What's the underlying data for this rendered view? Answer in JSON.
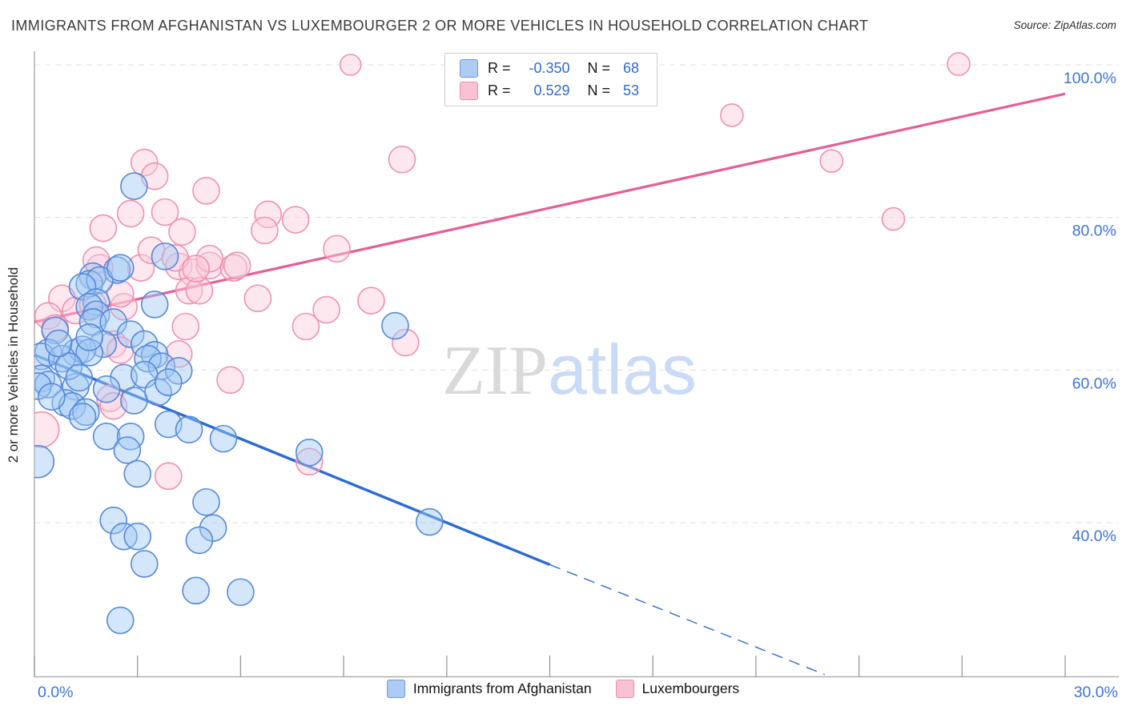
{
  "title": "IMMIGRANTS FROM AFGHANISTAN VS LUXEMBOURGER 2 OR MORE VEHICLES IN HOUSEHOLD CORRELATION CHART",
  "source": "Source: ZipAtlas.com",
  "ylabel": "2 or more Vehicles in Household",
  "watermark": {
    "part1": "ZIP",
    "part2": "atlas"
  },
  "legend_box": {
    "rows": [
      {
        "series": "Immigrants from Afghanistan",
        "r_label": "R =",
        "r_value": "-0.350",
        "n_label": "N =",
        "n_value": "68"
      },
      {
        "series": "Luxembourgers",
        "r_label": "R =",
        "r_value": "0.529",
        "n_label": "N =",
        "n_value": "53"
      }
    ]
  },
  "bottom_legend": [
    {
      "label": "Immigrants from Afghanistan",
      "color_class": "swatch-blue"
    },
    {
      "label": "Luxembourgers",
      "color_class": "swatch-pink"
    }
  ],
  "colors": {
    "axis_label_blue": "#3d74d9",
    "blue_stroke": "#5588d8",
    "blue_fill": "rgba(160,200,245,0.45)",
    "pink_stroke": "#f090b0",
    "pink_fill": "rgba(250,205,220,0.45)",
    "blue_trend": "#2c6bd0",
    "pink_trend": "#e55f96",
    "gridline": "#dcdcdc",
    "axis": "#b0b0b0",
    "tick": "#9a9a9a",
    "watermark_zip": "#d9d9d9",
    "watermark_atlas": "#c9dbf6"
  },
  "chart_data": {
    "type": "scatter",
    "title": "IMMIGRANTS FROM AFGHANISTAN VS LUXEMBOURGER 2 OR MORE VEHICLES IN HOUSEHOLD CORRELATION CHART",
    "xlabel": "Immigrants from Afghanistan (%)",
    "ylabel": "2 or more Vehicles in Household",
    "x_axis": {
      "min": 0,
      "max": 30,
      "tick_step": 3,
      "edge_labels": [
        "0.0%",
        "30.0%"
      ]
    },
    "y_axis": {
      "min": 20,
      "max": 101.7,
      "gridlines": [
        100,
        80,
        60,
        40
      ],
      "labels": [
        "100.0%",
        "80.0%",
        "60.0%",
        "40.0%"
      ],
      "grid": "dashed"
    },
    "legend_position": "top-center",
    "series": [
      {
        "name": "Immigrants from Afghanistan",
        "R": -0.35,
        "N": 68,
        "points": [
          [
            2.4,
            73.1
          ],
          [
            1.7,
            72.3
          ],
          [
            1.6,
            71.3
          ],
          [
            1.9,
            71.8
          ],
          [
            1.4,
            70.9
          ],
          [
            1.8,
            68.9
          ],
          [
            1.6,
            68.3
          ],
          [
            3.5,
            68.6
          ],
          [
            1.8,
            67.3
          ],
          [
            1.7,
            66.3
          ],
          [
            2.3,
            66.3
          ],
          [
            0.6,
            65.2
          ],
          [
            2.8,
            64.7
          ],
          [
            3.2,
            63.4
          ],
          [
            2.0,
            63.4
          ],
          [
            0.4,
            62.3
          ],
          [
            0.2,
            61.8
          ],
          [
            1.2,
            62.3
          ],
          [
            1.4,
            62.7
          ],
          [
            1.6,
            62.3
          ],
          [
            0.8,
            61.5
          ],
          [
            3.5,
            62.0
          ],
          [
            3.3,
            61.5
          ],
          [
            3.7,
            60.5
          ],
          [
            4.2,
            59.9
          ],
          [
            0.2,
            58.9
          ],
          [
            0.4,
            58.1
          ],
          [
            0.1,
            57.9
          ],
          [
            2.6,
            59.0
          ],
          [
            3.2,
            59.4
          ],
          [
            1.2,
            57.8
          ],
          [
            3.6,
            57.1
          ],
          [
            3.9,
            58.4
          ],
          [
            0.9,
            55.7
          ],
          [
            1.1,
            55.3
          ],
          [
            1.5,
            54.5
          ],
          [
            1.4,
            53.9
          ],
          [
            3.9,
            52.9
          ],
          [
            4.5,
            52.2
          ],
          [
            2.9,
            84.1
          ],
          [
            3.8,
            74.9
          ],
          [
            2.5,
            73.4
          ],
          [
            10.5,
            65.8
          ],
          [
            8.0,
            49.2
          ],
          [
            11.5,
            40.1
          ],
          [
            0.1,
            48.0,
            20
          ],
          [
            2.1,
            51.3
          ],
          [
            2.8,
            51.3
          ],
          [
            2.7,
            49.5
          ],
          [
            5.5,
            51.0
          ],
          [
            3.0,
            46.4
          ],
          [
            5.0,
            42.7
          ],
          [
            2.3,
            40.3
          ],
          [
            2.6,
            38.2
          ],
          [
            3.0,
            38.2
          ],
          [
            5.2,
            39.3
          ],
          [
            4.8,
            37.7
          ],
          [
            3.2,
            34.6
          ],
          [
            4.7,
            31.1
          ],
          [
            6.0,
            30.9
          ],
          [
            2.5,
            27.2
          ],
          [
            1.0,
            60.5
          ],
          [
            0.7,
            63.5
          ],
          [
            2.1,
            57.5
          ],
          [
            1.3,
            59.0
          ],
          [
            2.9,
            56.0
          ],
          [
            0.5,
            56.5
          ],
          [
            1.6,
            64.3
          ]
        ]
      },
      {
        "name": "Luxembourgers",
        "R": 0.529,
        "N": 53,
        "points": [
          [
            1.9,
            73.4
          ],
          [
            3.1,
            73.4
          ],
          [
            4.2,
            73.6
          ],
          [
            4.6,
            72.8
          ],
          [
            5.1,
            73.7
          ],
          [
            5.8,
            73.4
          ],
          [
            0.8,
            69.4
          ],
          [
            1.2,
            67.8
          ],
          [
            0.4,
            67.1
          ],
          [
            0.6,
            65.5
          ],
          [
            1.7,
            68.6
          ],
          [
            2.6,
            68.3
          ],
          [
            2.5,
            70.0
          ],
          [
            4.5,
            70.4
          ],
          [
            4.8,
            70.4
          ],
          [
            6.5,
            69.4
          ],
          [
            4.4,
            65.7
          ],
          [
            2.3,
            63.4
          ],
          [
            2.5,
            62.6
          ],
          [
            4.2,
            62.1
          ],
          [
            5.7,
            58.7
          ],
          [
            2.2,
            56.3
          ],
          [
            2.3,
            55.3
          ],
          [
            0.2,
            52.2,
            22
          ],
          [
            3.2,
            87.2
          ],
          [
            3.5,
            85.4
          ],
          [
            5.0,
            83.5
          ],
          [
            2.8,
            80.5
          ],
          [
            3.8,
            80.7
          ],
          [
            2.0,
            78.6
          ],
          [
            4.3,
            78.1
          ],
          [
            6.8,
            80.4
          ],
          [
            6.7,
            78.3
          ],
          [
            1.8,
            74.4
          ],
          [
            3.4,
            75.7
          ],
          [
            4.1,
            74.7
          ],
          [
            5.1,
            74.6
          ],
          [
            4.7,
            73.3
          ],
          [
            5.9,
            73.7
          ],
          [
            10.7,
            87.6
          ],
          [
            7.6,
            79.7
          ],
          [
            8.8,
            75.9
          ],
          [
            8.5,
            67.9
          ],
          [
            9.8,
            69.1
          ],
          [
            7.9,
            65.7
          ],
          [
            10.8,
            63.6
          ],
          [
            9.2,
            100.0,
            13
          ],
          [
            20.3,
            93.4,
            14
          ],
          [
            23.2,
            87.4,
            14
          ],
          [
            26.9,
            100.1,
            14
          ],
          [
            25.0,
            79.8,
            14
          ],
          [
            3.9,
            46.1
          ],
          [
            8.0,
            48.0
          ]
        ]
      }
    ],
    "trendlines": [
      {
        "series": "Immigrants from Afghanistan",
        "solid": [
          [
            0,
            62.0
          ],
          [
            15.0,
            34.5
          ]
        ],
        "dashed": [
          [
            15.0,
            34.5
          ],
          [
            23.0,
            20.1
          ]
        ]
      },
      {
        "series": "Luxembourgers",
        "solid": [
          [
            0,
            66.3
          ],
          [
            30,
            96.2
          ]
        ]
      }
    ]
  }
}
